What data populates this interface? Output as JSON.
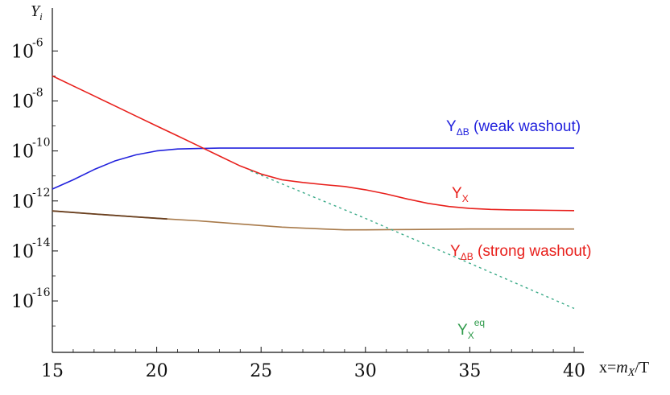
{
  "chart_data": {
    "type": "line",
    "title": "",
    "xlabel": "x=m_X/T",
    "ylabel": "Y_i",
    "x_scale": "linear",
    "y_scale": "log",
    "xlim": [
      15,
      40
    ],
    "ylim": [
      1e-18,
      1e-06
    ],
    "grid": false,
    "legend": "none",
    "x_ticks": [
      "15",
      "20",
      "25",
      "30",
      "35",
      "40"
    ],
    "y_ticks": [
      {
        "base": "10",
        "exp": "-6"
      },
      {
        "base": "10",
        "exp": "-8"
      },
      {
        "base": "10",
        "exp": "-10"
      },
      {
        "base": "10",
        "exp": "-12"
      },
      {
        "base": "10",
        "exp": "-14"
      },
      {
        "base": "10",
        "exp": "-16"
      }
    ],
    "series": [
      {
        "label": {
          "main": "Y",
          "sub": "ΔB",
          "rest": " (weak washout)"
        },
        "color": "#2222dd",
        "style": "solid",
        "x": [
          15,
          16,
          17,
          18,
          19,
          20,
          21,
          22,
          23,
          24,
          25,
          30,
          35,
          40
        ],
        "y": [
          3e-12,
          7e-12,
          1.8e-11,
          4e-11,
          7e-11,
          1e-10,
          1.2e-10,
          1.25e-10,
          1.3e-10,
          1.3e-10,
          1.3e-10,
          1.3e-10,
          1.3e-10,
          1.3e-10
        ]
      },
      {
        "label": {
          "main": "Y",
          "sub": "X",
          "rest": ""
        },
        "color": "#e8201c",
        "style": "solid",
        "x": [
          15,
          16,
          17,
          18,
          19,
          20,
          21,
          22,
          23,
          24,
          25,
          26,
          27,
          28,
          29,
          30,
          31,
          32,
          33,
          34,
          35,
          36,
          37,
          38,
          39,
          40
        ],
        "y": [
          1e-07,
          4e-08,
          1.6e-08,
          6.3e-09,
          2.5e-09,
          1e-09,
          4e-10,
          1.6e-10,
          6.3e-11,
          2.5e-11,
          1.2e-11,
          7e-12,
          5.5e-12,
          4.5e-12,
          3.8e-12,
          2.8e-12,
          1.9e-12,
          1.2e-12,
          8e-13,
          6e-13,
          5e-13,
          4.6e-13,
          4.4e-13,
          4.3e-13,
          4.2e-13,
          4.1e-13
        ]
      },
      {
        "label": {
          "main": "Y",
          "sub": "ΔB",
          "rest": " (strong washout)"
        },
        "color": "#a87a4a",
        "style": "solid",
        "x": [
          15,
          17,
          19,
          20.5,
          22,
          24,
          26,
          28,
          29,
          30,
          32,
          35,
          40
        ],
        "y": [
          4e-13,
          3e-13,
          2.3e-13,
          1.9e-13,
          1.6e-13,
          1.2e-13,
          9e-14,
          7.5e-14,
          7e-14,
          7e-14,
          7.2e-14,
          7.5e-14,
          7.5e-14
        ]
      },
      {
        "label": {
          "main": "Y",
          "sub": "X",
          "sup": "eq",
          "rest": ""
        },
        "color": "#3aaa88",
        "style": "dashed",
        "x": [
          24.5,
          30,
          35,
          40
        ],
        "y": [
          1.6e-11,
          2e-13,
          3.2e-15,
          5e-17
        ]
      }
    ]
  }
}
